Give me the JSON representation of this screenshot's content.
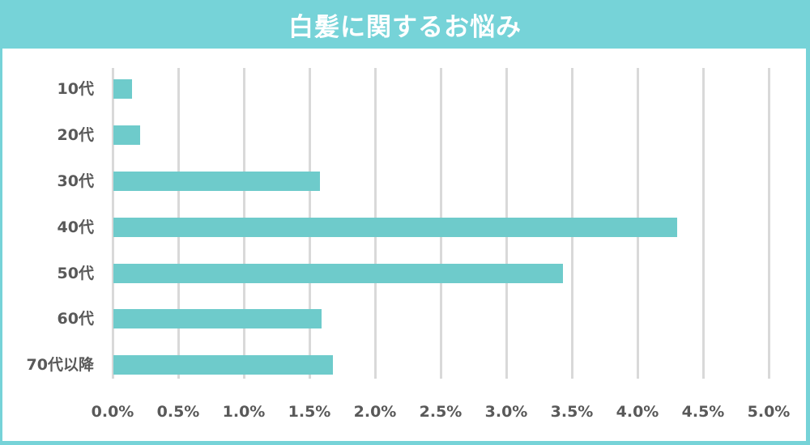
{
  "header": {
    "title": "白髪に関するお悩み"
  },
  "colors": {
    "frame": "#76d3d8",
    "bar": "#6ecbcb",
    "grid": "#d9d9d9",
    "text": "#595959"
  },
  "chart_data": {
    "type": "bar",
    "orientation": "horizontal",
    "title": "白髪に関するお悩み",
    "categories": [
      "10代",
      "20代",
      "30代",
      "40代",
      "50代",
      "60代",
      "70代以降"
    ],
    "values": [
      0.15,
      0.21,
      1.58,
      4.3,
      3.43,
      1.59,
      1.68
    ],
    "unit": "%",
    "xlabel": "",
    "ylabel": "",
    "xlim": [
      0,
      5.0
    ],
    "x_ticks": [
      "0.0%",
      "0.5%",
      "1.0%",
      "1.5%",
      "2.0%",
      "2.5%",
      "3.0%",
      "3.5%",
      "4.0%",
      "4.5%",
      "5.0%"
    ],
    "grid": "vertical",
    "legend": "none"
  }
}
